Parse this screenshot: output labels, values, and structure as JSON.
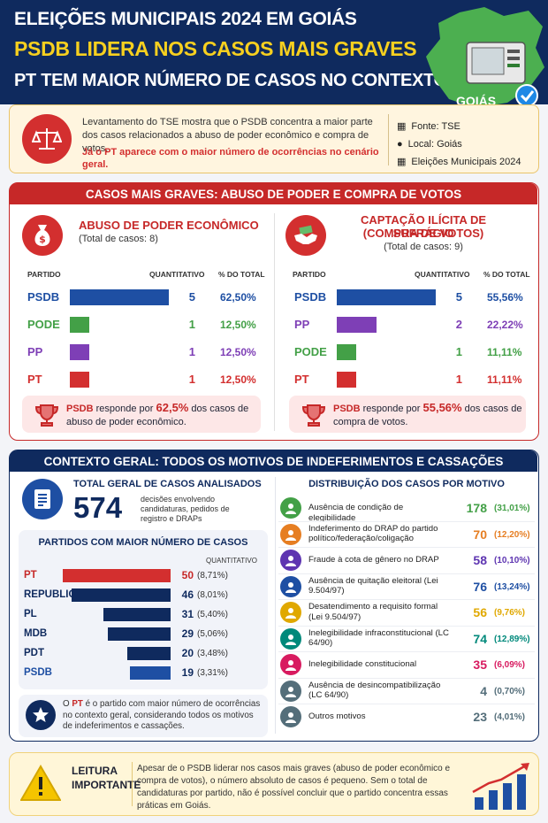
{
  "header": {
    "line1": "ELEIÇÕES MUNICIPAIS 2024 EM GOIÁS",
    "line2": "PSDB LIDERA NOS CASOS MAIS GRAVES",
    "line3": "PT TEM MAIOR NÚMERO DE CASOS NO CONTEXTO GERAL",
    "map_label": "GOIÁS"
  },
  "intro": {
    "text": "Levantamento do TSE mostra que o PSDB concentra a maior parte dos casos relacionados a abuso de poder econômico e compra de votos.",
    "highlight": "Já o PT aparece com o maior número de ocorrências no cenário geral.",
    "source": "Fonte: TSE",
    "location": "Local: Goiás",
    "event": "Eleições Municipais 2024"
  },
  "colors": {
    "navy": "#0f2a5e",
    "red": "#c62828",
    "psdb": "#1e4fa3",
    "pode": "#43a047",
    "pp": "#7e3fb6",
    "pt": "#d32f2f"
  },
  "graves": {
    "title": "CASOS MAIS GRAVES: ABUSO DE PODER E COMPRA DE VOTOS",
    "col_partido": "PARTIDO",
    "col_quant": "QUANTITATIVO",
    "col_pct": "% DO TOTAL",
    "abuso": {
      "title": "ABUSO DE PODER ECONÔMICO",
      "subtitle": "(Total de casos: 8)",
      "note_party": "PSDB",
      "note_mid": " responde por ",
      "note_pct": "62,5%",
      "note_end": " dos casos de abuso de poder econômico."
    },
    "captacao": {
      "title1": "CAPTAÇÃO ILÍCITA DE SUFRÁGIO",
      "title2": "(COMPRA DE VOTOS)",
      "subtitle": "(Total de casos: 9)",
      "note_party": "PSDB",
      "note_mid": " responde por ",
      "note_pct": "55,56%",
      "note_end": " dos casos de compra de votos."
    }
  },
  "geral": {
    "title": "CONTEXTO GERAL: TODOS OS MOTIVOS DE INDEFERIMENTOS E CASSAÇÕES",
    "total_label": "TOTAL GERAL DE CASOS ANALISADOS",
    "total_value": "574",
    "total_desc": "decisões envolvendo candidaturas, pedidos de registro e DRAPs",
    "parties_title": "PARTIDOS COM MAIOR NÚMERO DE CASOS",
    "parties_qh": "QUANTITATIVO",
    "star_pre": "O ",
    "star_party": "PT",
    "star_text": " é o partido com maior número de ocorrências no contexto geral, considerando todos os motivos de indeferimentos e cassações.",
    "dist_title": "DISTRIBUIÇÃO DOS CASOS POR MOTIVO"
  },
  "footer": {
    "title1": "LEITURA",
    "title2": "IMPORTANTE",
    "text": "Apesar de o PSDB liderar nos casos mais graves (abuso de poder econômico e compra de votos), o número absoluto de casos é pequeno. Sem o total de candidaturas por partido, não é possível concluir que o partido concentra essas práticas em Goiás."
  },
  "chart_data": [
    {
      "type": "bar",
      "title": "ABUSO DE PODER ECONÔMICO",
      "categories": [
        "PSDB",
        "PODE",
        "PP",
        "PT"
      ],
      "values": [
        5,
        1,
        1,
        1
      ],
      "percent_labels": [
        "62,50%",
        "12,50%",
        "12,50%",
        "12,50%"
      ],
      "bar_colors": [
        "#1e4fa3",
        "#43a047",
        "#7e3fb6",
        "#d32f2f"
      ],
      "max": 5
    },
    {
      "type": "bar",
      "title": "CAPTAÇÃO ILÍCITA DE SUFRÁGIO (COMPRA DE VOTOS)",
      "categories": [
        "PSDB",
        "PP",
        "PODE",
        "PT"
      ],
      "values": [
        5,
        2,
        1,
        1
      ],
      "percent_labels": [
        "55,56%",
        "22,22%",
        "11,11%",
        "11,11%"
      ],
      "bar_colors": [
        "#1e4fa3",
        "#7e3fb6",
        "#43a047",
        "#d32f2f"
      ],
      "max": 5
    },
    {
      "type": "bar",
      "title": "PARTIDOS COM MAIOR NÚMERO DE CASOS",
      "categories": [
        "PT",
        "REPUBLICANOS",
        "PL",
        "MDB",
        "PDT",
        "PSDB"
      ],
      "values": [
        50,
        46,
        31,
        29,
        20,
        19
      ],
      "percent_labels": [
        "(8,71%)",
        "(8,01%)",
        "(5,40%)",
        "(5,06%)",
        "(3,48%)",
        "(3,31%)"
      ],
      "bar_colors": [
        "#d32f2f",
        "#0f2a5e",
        "#0f2a5e",
        "#0f2a5e",
        "#0f2a5e",
        "#1e4fa3"
      ],
      "max": 50
    },
    {
      "type": "table",
      "title": "DISTRIBUIÇÃO DOS CASOS POR MOTIVO",
      "rows": [
        {
          "label": "Ausência de condição de elegibilidade",
          "value": 178,
          "pct": "(31,01%)",
          "color": "#43a047",
          "icon": "person-check-icon"
        },
        {
          "label": "Indeferimento do DRAP do partido político/federação/coligação",
          "value": 70,
          "pct": "(12,20%)",
          "color": "#e67e22",
          "icon": "group-icon"
        },
        {
          "label": "Fraude à cota de gênero no DRAP",
          "value": 58,
          "pct": "(10,10%)",
          "color": "#5e35b1",
          "icon": "gavel-icon"
        },
        {
          "label": "Ausência de quitação eleitoral (Lei 9.504/97)",
          "value": 76,
          "pct": "(13,24%)",
          "color": "#1e4fa3",
          "icon": "document-icon"
        },
        {
          "label": "Desatendimento a requisito formal (Lei 9.504/97)",
          "value": 56,
          "pct": "(9,76%)",
          "color": "#e0a800",
          "icon": "clipboard-icon"
        },
        {
          "label": "Inelegibilidade infraconstitucional (LC 64/90)",
          "value": 74,
          "pct": "(12,89%)",
          "color": "#00897b",
          "icon": "law-book-icon"
        },
        {
          "label": "Inelegibilidade constitucional",
          "value": 35,
          "pct": "(6,09%)",
          "color": "#d81b60",
          "icon": "link-icon"
        },
        {
          "label": "Ausência de desincompatibilização (LC 64/90)",
          "value": 4,
          "pct": "(0,70%)",
          "color": "#546e7a",
          "icon": "user-icon"
        },
        {
          "label": "Outros motivos",
          "value": 23,
          "pct": "(4,01%)",
          "color": "#546e7a",
          "icon": "scales-icon"
        }
      ]
    }
  ]
}
